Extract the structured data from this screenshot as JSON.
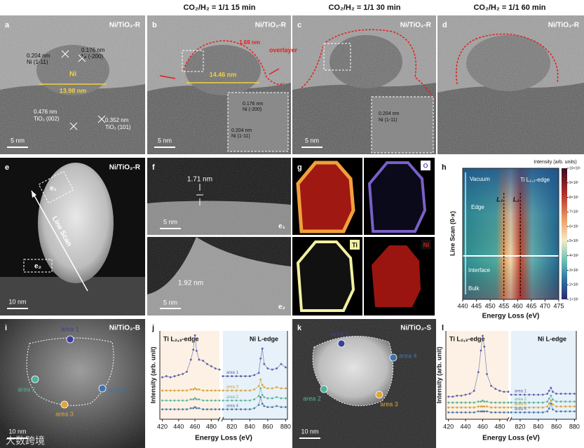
{
  "headers": [
    "CO₂/H₂ = 1/1 15 min",
    "CO₂/H₂ = 1/1 30 min",
    "CO₂/H₂ = 1/1 60 min"
  ],
  "watermark": "大数跨境",
  "panels": {
    "a": {
      "label": "a",
      "sample": "Ni/TiO₂-R",
      "d1": "0.204 nm",
      "p1": "Ni (1-11)",
      "d2": "0.176 nm",
      "p2": "Ni (-200)",
      "ni": "Ni",
      "size": "13.98 nm",
      "d3": "0.352 nm",
      "p3": "TiO₂ (101)",
      "d4": "0.476 nm",
      "p4": "TiO₂ (002)",
      "scale": "5 nm"
    },
    "b": {
      "label": "b",
      "sample": "Ni/TiO₂-R",
      "thick": "1.69 nm",
      "overlayer": "overlayer",
      "size": "14.46 nm",
      "d1": "0.176 nm",
      "p1": "Ni (-200)",
      "d2": "0.204 nm",
      "p2": "Ni (1-11)",
      "scale": "5 nm"
    },
    "c": {
      "label": "c",
      "sample": "Ni/TiO₂-R",
      "d1": "0.204 nm",
      "p1": "Ni (1-11)",
      "scale": "5 nm"
    },
    "d": {
      "label": "d",
      "sample": "Ni/TiO₂-R"
    },
    "e": {
      "label": "e",
      "sample": "Ni/TiO₂-R",
      "e1": "e₁",
      "e2": "e₂",
      "scan": "Line Scan",
      "scale": "10 nm"
    },
    "f": {
      "label": "f",
      "thick1": "1.71 nm",
      "scale1": "5 nm",
      "tag1": "e₁",
      "thick2": "1.92 nm",
      "scale2": "5 nm",
      "tag2": "e₂"
    },
    "g": {
      "label": "g",
      "maps": [
        "O",
        "Ti",
        "Ni"
      ]
    },
    "h": {
      "label": "h",
      "type": "heatmap",
      "colorbar_title": "Intensity (arb. units)",
      "edge": "Ti L₂,₃-edge",
      "regions": [
        "Vacuum",
        "Edge",
        "Interface",
        "Bulk"
      ],
      "peaks": [
        {
          "label": "L₃",
          "x": 455
        },
        {
          "label": "L₂",
          "x": 461
        }
      ],
      "ylabel": "Line Scan (0-x)",
      "xlabel": "Energy Loss (eV)",
      "xlim": [
        440,
        475
      ],
      "xticks": [
        440,
        445,
        450,
        455,
        460,
        465,
        470,
        475
      ],
      "clim": [
        100,
        1000
      ],
      "colorbar_ticks": [
        {
          "value": 1000,
          "label": "10×10²"
        },
        {
          "value": 900,
          "label": "9×10²"
        },
        {
          "value": 800,
          "label": "8×10²"
        },
        {
          "value": 700,
          "label": "7×10²"
        },
        {
          "value": 600,
          "label": "6×10²"
        },
        {
          "value": 500,
          "label": "5×10²"
        },
        {
          "value": 400,
          "label": "4×10²"
        },
        {
          "value": 300,
          "label": "3×10²"
        },
        {
          "value": 200,
          "label": "2×10²"
        },
        {
          "value": 100,
          "label": "1×10²"
        }
      ]
    },
    "i": {
      "label": "i",
      "sample": "Ni/TiO₂-B",
      "areas": [
        "area 1",
        "area 2",
        "area 3",
        "area 4"
      ],
      "scale": "10 nm"
    },
    "j": {
      "label": "j",
      "type": "scatter",
      "ti_title": "Ti L₂,₃-edge",
      "ni_title": "Ni L-edge",
      "ylabel": "Intensity (arb. unit)",
      "xlabel": "Energy Loss (eV)",
      "ti_xlim": [
        417,
        490
      ],
      "ni_xlim": [
        810,
        882
      ],
      "ti_xticks": [
        420,
        440,
        460,
        480
      ],
      "ni_xticks": [
        820,
        840,
        860,
        880
      ],
      "ylim": [
        2,
        10
      ],
      "ti_x": [
        420,
        425,
        430,
        435,
        440,
        445,
        450,
        455,
        458,
        460,
        462,
        465,
        470,
        475,
        480,
        485,
        490
      ],
      "ni_x": [
        810,
        815,
        820,
        825,
        830,
        835,
        840,
        845,
        850,
        852,
        854,
        856,
        860,
        865,
        870,
        875,
        880
      ],
      "series": [
        {
          "name": "area 1",
          "color": "#5b5ea8",
          "ti_values": [
            5.8,
            5.9,
            5.8,
            5.9,
            6.0,
            6.1,
            6.3,
            7.4,
            8.3,
            9.6,
            8.2,
            7.4,
            7.3,
            7.0,
            6.8,
            6.6,
            6.5
          ],
          "ni_values": [
            5.9,
            5.9,
            5.9,
            5.9,
            5.9,
            5.9,
            5.9,
            6.0,
            6.2,
            7.5,
            8.4,
            7.0,
            6.6,
            6.5,
            6.6,
            7.0,
            6.7
          ]
        },
        {
          "name": "area 3",
          "color": "#d9a43a",
          "ti_values": [
            4.6,
            4.6,
            4.6,
            4.6,
            4.6,
            4.6,
            4.6,
            4.7,
            4.7,
            4.8,
            4.7,
            4.7,
            4.6,
            4.6,
            4.6,
            4.6,
            4.6
          ],
          "ni_values": [
            4.6,
            4.6,
            4.6,
            4.6,
            4.6,
            4.6,
            4.6,
            4.7,
            5.0,
            5.6,
            5.1,
            4.9,
            4.8,
            4.8,
            4.9,
            4.8,
            4.8
          ]
        },
        {
          "name": "area 2",
          "color": "#5ab39a",
          "ti_values": [
            3.7,
            3.7,
            3.7,
            3.7,
            3.7,
            3.7,
            3.7,
            3.8,
            3.8,
            3.9,
            3.8,
            3.8,
            3.7,
            3.7,
            3.7,
            3.7,
            3.7
          ],
          "ni_values": [
            3.7,
            3.7,
            3.7,
            3.7,
            3.7,
            3.7,
            3.7,
            3.8,
            4.1,
            4.8,
            4.2,
            4.0,
            3.9,
            3.9,
            4.0,
            3.9,
            3.9
          ]
        },
        {
          "name": "area 4",
          "color": "#4d78a8",
          "ti_values": [
            2.9,
            2.9,
            2.9,
            2.9,
            2.9,
            2.9,
            2.9,
            3.0,
            3.0,
            3.1,
            3.0,
            3.0,
            2.9,
            2.9,
            2.9,
            2.9,
            2.9
          ],
          "ni_values": [
            2.9,
            2.9,
            2.9,
            2.9,
            2.9,
            2.9,
            2.9,
            3.0,
            3.3,
            4.0,
            3.4,
            3.2,
            3.1,
            3.1,
            3.2,
            3.1,
            3.1
          ]
        }
      ]
    },
    "k": {
      "label": "k",
      "sample": "Ni/TiO₂-S",
      "areas": [
        "area 1",
        "area 2",
        "area 3",
        "area 4"
      ],
      "scale": "10 nm"
    },
    "l": {
      "label": "l",
      "type": "scatter",
      "ti_title": "Ti L₂,₃-edge",
      "ni_title": "Ni L-edge",
      "ylabel": "Intensity (arb. unit)",
      "xlabel": "Energy Loss (eV)",
      "ti_xlim": [
        417,
        490
      ],
      "ni_xlim": [
        810,
        882
      ],
      "ti_xticks": [
        420,
        440,
        460,
        480
      ],
      "ni_xticks": [
        820,
        840,
        860,
        880
      ],
      "ylim": [
        1,
        10
      ],
      "ti_x": [
        420,
        425,
        430,
        435,
        440,
        445,
        450,
        455,
        458,
        460,
        462,
        465,
        470,
        475,
        480,
        485,
        490
      ],
      "ni_x": [
        810,
        815,
        820,
        825,
        830,
        835,
        840,
        845,
        850,
        852,
        854,
        856,
        860,
        865,
        870,
        875,
        880
      ],
      "series": [
        {
          "name": "area 1",
          "color": "#5b5ea8",
          "ti_values": [
            3.3,
            3.3,
            3.4,
            3.4,
            3.5,
            3.6,
            3.9,
            5.8,
            8.0,
            9.5,
            8.4,
            5.6,
            4.4,
            4.1,
            3.9,
            3.8,
            3.8
          ],
          "ni_values": [
            3.5,
            3.5,
            3.5,
            3.5,
            3.5,
            3.5,
            3.5,
            3.5,
            3.6,
            3.9,
            4.2,
            3.8,
            3.6,
            3.6,
            3.6,
            3.6,
            3.6
          ]
        },
        {
          "name": "area 2",
          "color": "#5ab39a",
          "ti_values": [
            2.7,
            2.7,
            2.7,
            2.7,
            2.7,
            2.7,
            2.7,
            2.8,
            2.8,
            2.9,
            2.8,
            2.8,
            2.7,
            2.7,
            2.7,
            2.7,
            2.7
          ],
          "ni_values": [
            2.7,
            2.7,
            2.7,
            2.7,
            2.7,
            2.7,
            2.7,
            2.7,
            2.8,
            3.1,
            3.4,
            3.0,
            2.8,
            2.8,
            2.8,
            2.8,
            2.8
          ]
        },
        {
          "name": "area 3",
          "color": "#d9a43a",
          "ti_values": [
            2.2,
            2.2,
            2.2,
            2.2,
            2.2,
            2.2,
            2.2,
            2.3,
            2.3,
            2.3,
            2.3,
            2.3,
            2.2,
            2.2,
            2.2,
            2.2,
            2.2
          ],
          "ni_values": [
            2.2,
            2.2,
            2.2,
            2.2,
            2.2,
            2.2,
            2.2,
            2.2,
            2.3,
            2.6,
            2.9,
            2.5,
            2.3,
            2.3,
            2.3,
            2.3,
            2.3
          ]
        },
        {
          "name": "area 4",
          "color": "#4d78a8",
          "ti_values": [
            1.7,
            1.7,
            1.7,
            1.7,
            1.7,
            1.7,
            1.7,
            1.8,
            1.8,
            1.8,
            1.8,
            1.8,
            1.7,
            1.7,
            1.7,
            1.7,
            1.7
          ],
          "ni_values": [
            1.7,
            1.7,
            1.7,
            1.7,
            1.7,
            1.7,
            1.7,
            1.7,
            1.8,
            2.1,
            2.6,
            2.0,
            1.8,
            1.8,
            1.8,
            1.8,
            1.8
          ]
        }
      ]
    }
  }
}
